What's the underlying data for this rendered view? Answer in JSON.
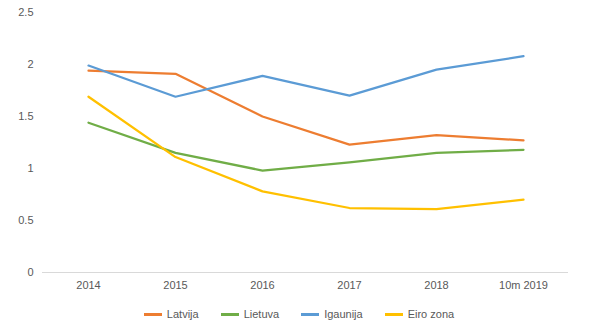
{
  "chart_data": {
    "type": "line",
    "categories": [
      "2014",
      "2015",
      "2016",
      "2017",
      "2018",
      "10m 2019"
    ],
    "series": [
      {
        "name": "Latvija",
        "color": "#ED7D31",
        "values": [
          1.94,
          1.91,
          1.5,
          1.23,
          1.32,
          1.27
        ]
      },
      {
        "name": "Lietuva",
        "color": "#70AD47",
        "values": [
          1.44,
          1.15,
          0.98,
          1.06,
          1.15,
          1.18
        ]
      },
      {
        "name": "Igaunija",
        "color": "#5B9BD5",
        "values": [
          1.99,
          1.69,
          1.89,
          1.7,
          1.95,
          2.08
        ]
      },
      {
        "name": "Eiro zona",
        "color": "#FFC000",
        "values": [
          1.69,
          1.11,
          0.78,
          0.62,
          0.61,
          0.7
        ]
      }
    ],
    "ylim": [
      0,
      2.5
    ],
    "yticks": [
      0,
      0.5,
      1,
      1.5,
      2,
      2.5
    ],
    "grid": false,
    "legend": "bottom"
  }
}
